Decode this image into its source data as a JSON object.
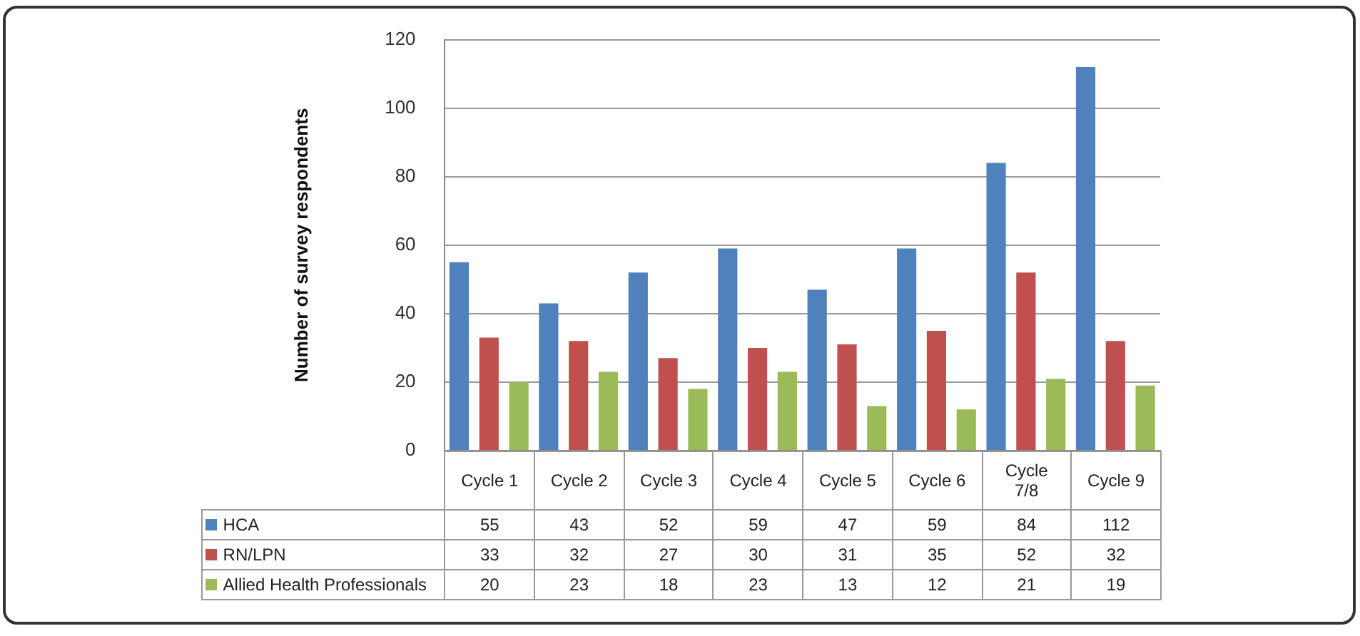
{
  "chart_data": {
    "type": "bar",
    "ylabel": "Number of survey respondents",
    "categories": [
      "Cycle 1",
      "Cycle 2",
      "Cycle 3",
      "Cycle 4",
      "Cycle 5",
      "Cycle 6",
      "Cycle 7/8",
      "Cycle 9"
    ],
    "series": [
      {
        "name": "HCA",
        "color": "#4f81bd",
        "values": [
          55,
          43,
          52,
          59,
          47,
          59,
          84,
          112
        ]
      },
      {
        "name": "RN/LPN",
        "color": "#c0504d",
        "values": [
          33,
          32,
          27,
          30,
          31,
          35,
          52,
          32
        ]
      },
      {
        "name": "Allied Health Professionals",
        "color": "#9bbb59",
        "values": [
          20,
          23,
          18,
          23,
          13,
          12,
          21,
          19
        ]
      }
    ],
    "ylim": [
      0,
      120
    ],
    "yticks": [
      0,
      20,
      40,
      60,
      80,
      100,
      120
    ],
    "grid": "y",
    "legend": "bottom",
    "data_labels": true
  }
}
